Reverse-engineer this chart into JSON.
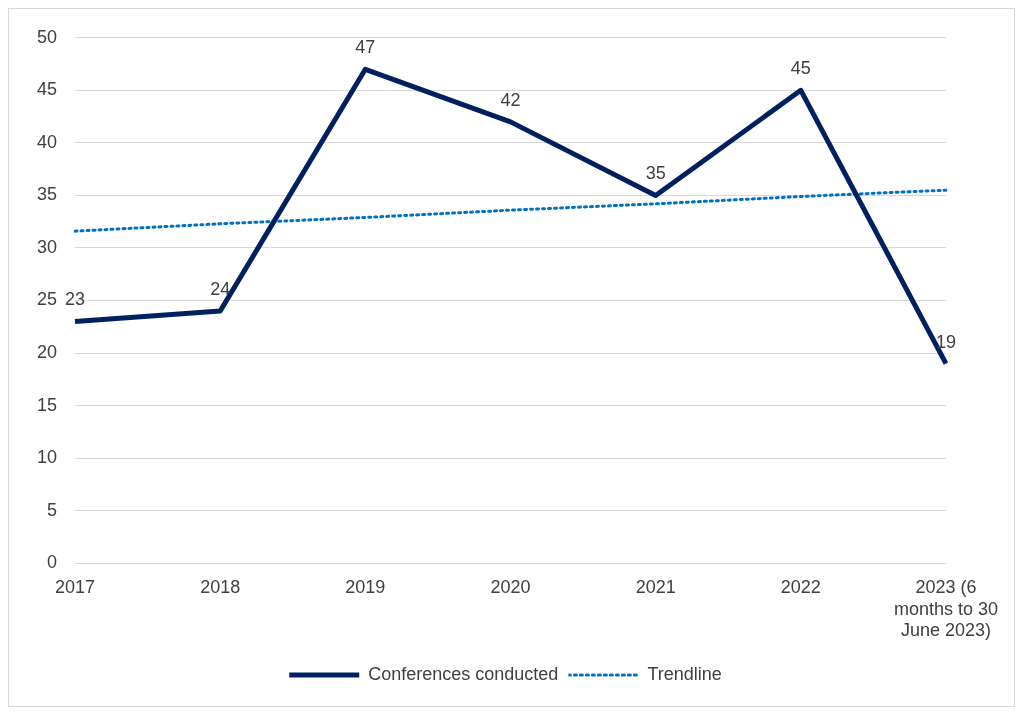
{
  "chart_data": {
    "type": "line",
    "categories": [
      "2017",
      "2018",
      "2019",
      "2020",
      "2021",
      "2022",
      "2023 (6 months to 30 June 2023)"
    ],
    "series": [
      {
        "name": "Conferences conducted",
        "color": "#002060",
        "values": [
          23,
          24,
          47,
          42,
          35,
          45,
          19
        ],
        "value_labels": [
          "23",
          "24",
          "47",
          "42",
          "35",
          "45",
          "19"
        ],
        "line_style": "solid"
      },
      {
        "name": "Trendline",
        "color": "#0070c0",
        "values": [
          31.6,
          32.3,
          32.9,
          33.6,
          34.2,
          34.9,
          35.5
        ],
        "line_style": "dotted"
      }
    ],
    "ylim": [
      0,
      50
    ],
    "yticks": [
      0,
      5,
      10,
      15,
      20,
      25,
      30,
      35,
      40,
      45,
      50
    ],
    "grid": "y",
    "legend": "bottom",
    "marker": "none"
  }
}
